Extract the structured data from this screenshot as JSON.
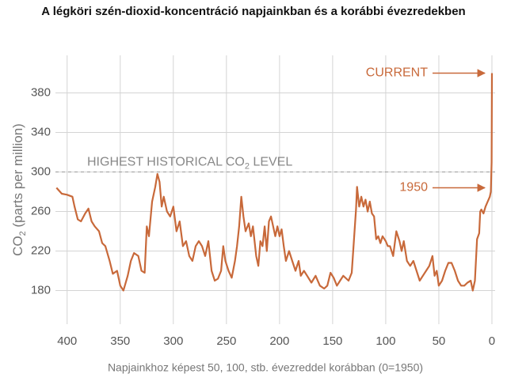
{
  "chart_data": {
    "type": "line",
    "title": "A légköri szén-dioxid-koncentráció napjainkban és a korábbi évezredekben",
    "xlabel": "Napjainkhoz képest 50, 100, stb. évezreddel korábban (0=1950)",
    "ylabel": {
      "main": "CO",
      "sub": "2",
      "rest": " (parts per million)"
    },
    "xlim": [
      411,
      -3
    ],
    "ylim": [
      146,
      418
    ],
    "xticks": [
      400,
      350,
      300,
      250,
      200,
      150,
      100,
      50,
      0
    ],
    "yticks": [
      180,
      220,
      260,
      300,
      340,
      380
    ],
    "grid": true,
    "reference_line": {
      "value": 300,
      "label": {
        "main": "HIGHEST HISTORICAL CO",
        "sub": "2",
        "rest": " LEVEL"
      }
    },
    "annotations": [
      {
        "text": "CURRENT",
        "y": 400
      },
      {
        "text": "1950",
        "y": 284
      }
    ],
    "series": [
      {
        "color": "#c8693a",
        "x": [
          410,
          405,
          400,
          395,
          393,
          390,
          387,
          383,
          380,
          377,
          374,
          370,
          367,
          364,
          360,
          357,
          353,
          350,
          347,
          343,
          340,
          337,
          333,
          330,
          327,
          325,
          323,
          320,
          317,
          315,
          313,
          311,
          309,
          306,
          303,
          300,
          297,
          294,
          291,
          288,
          285,
          282,
          279,
          276,
          273,
          270,
          267,
          264,
          261,
          258,
          255,
          253,
          251,
          248,
          245,
          242,
          240,
          238,
          236,
          234,
          232,
          229,
          227,
          225,
          222,
          220,
          218,
          216,
          214,
          212,
          210,
          208,
          206,
          204,
          202,
          200,
          198,
          196,
          194,
          191,
          188,
          185,
          182,
          180,
          177,
          174,
          170,
          166,
          162,
          158,
          155,
          152,
          149,
          146,
          143,
          140,
          137,
          135,
          132,
          130,
          128,
          127,
          125,
          123,
          121,
          119,
          117,
          115,
          113,
          111,
          109,
          107,
          105,
          103,
          100,
          98,
          96,
          93,
          90,
          87,
          85,
          83,
          80,
          77,
          74,
          71,
          68,
          65,
          62,
          59,
          56,
          54,
          52,
          50,
          47,
          44,
          41,
          38,
          35,
          32,
          29,
          26,
          23,
          20,
          18,
          16,
          14,
          12,
          11,
          10,
          8,
          6,
          4,
          2,
          1,
          0.3,
          0
        ],
        "values": [
          284,
          278,
          277,
          275,
          265,
          252,
          250,
          258,
          263,
          250,
          245,
          240,
          228,
          225,
          210,
          197,
          200,
          185,
          180,
          195,
          210,
          218,
          215,
          200,
          198,
          245,
          235,
          270,
          285,
          298,
          290,
          265,
          275,
          260,
          255,
          265,
          240,
          250,
          225,
          230,
          215,
          210,
          225,
          230,
          225,
          215,
          230,
          200,
          190,
          192,
          200,
          225,
          210,
          200,
          193,
          210,
          225,
          245,
          275,
          255,
          240,
          248,
          235,
          245,
          215,
          205,
          230,
          225,
          245,
          220,
          250,
          255,
          245,
          235,
          245,
          235,
          242,
          225,
          210,
          220,
          210,
          200,
          210,
          195,
          200,
          195,
          188,
          195,
          185,
          182,
          185,
          198,
          193,
          185,
          190,
          195,
          192,
          190,
          198,
          230,
          262,
          285,
          265,
          275,
          265,
          272,
          260,
          270,
          258,
          255,
          232,
          235,
          228,
          235,
          230,
          225,
          225,
          215,
          240,
          230,
          220,
          230,
          210,
          205,
          210,
          200,
          190,
          195,
          200,
          205,
          215,
          195,
          200,
          185,
          190,
          200,
          208,
          208,
          200,
          190,
          185,
          185,
          188,
          190,
          180,
          190,
          232,
          238,
          260,
          262,
          258,
          265,
          270,
          275,
          280,
          310,
          400
        ]
      }
    ]
  }
}
